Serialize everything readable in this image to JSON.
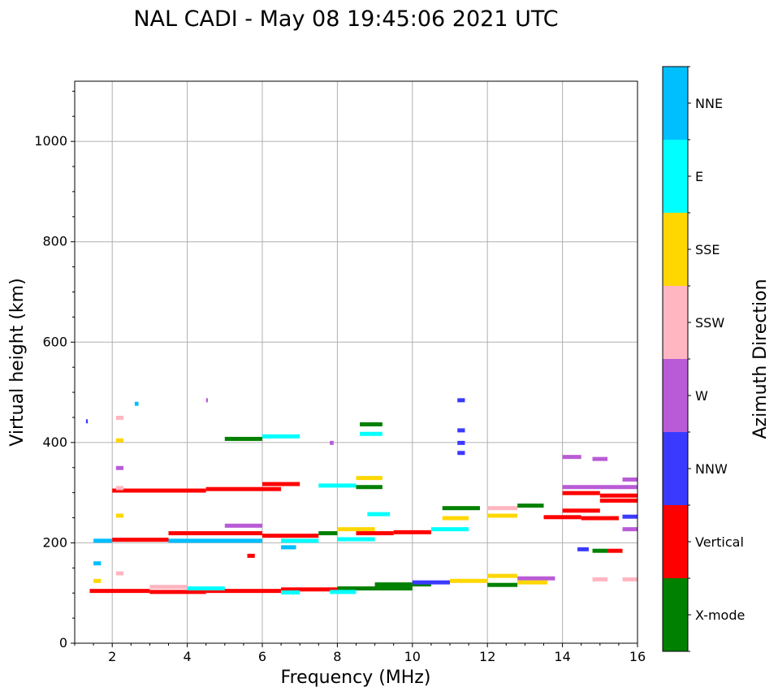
{
  "chart_data": {
    "type": "heatmap",
    "title": "NAL CADI - May 08 19:45:06 2021 UTC",
    "xlabel": "Frequency (MHz)",
    "ylabel": "Virtual height (km)",
    "xlim": [
      1.0,
      16.0
    ],
    "ylim": [
      0,
      1120
    ],
    "xticks": [
      2,
      4,
      6,
      8,
      10,
      12,
      14,
      16
    ],
    "yticks": [
      0,
      200,
      400,
      600,
      800,
      1000
    ],
    "grid": true,
    "colorbar": {
      "label": "Azimuth Direction",
      "categories": [
        {
          "name": "X-mode",
          "color": "#008000"
        },
        {
          "name": "Vertical",
          "color": "#ff0000"
        },
        {
          "name": "NNW",
          "color": "#3a3aff"
        },
        {
          "name": "W",
          "color": "#b95bd6"
        },
        {
          "name": "SSW",
          "color": "#ffb6c1"
        },
        {
          "name": "SSE",
          "color": "#ffd700"
        },
        {
          "name": "E",
          "color": "#00ffff"
        },
        {
          "name": "NNE",
          "color": "#00bfff"
        }
      ]
    },
    "echoes": [
      {
        "f0": 1.4,
        "f1": 3.0,
        "h": 105,
        "c": "Vertical"
      },
      {
        "f0": 3.0,
        "f1": 4.5,
        "h": 103,
        "c": "Vertical"
      },
      {
        "f0": 4.5,
        "f1": 6.5,
        "h": 105,
        "c": "Vertical"
      },
      {
        "f0": 6.5,
        "f1": 8.0,
        "h": 108,
        "c": "Vertical"
      },
      {
        "f0": 8.0,
        "f1": 10.0,
        "h": 110,
        "c": "X-mode"
      },
      {
        "f0": 9.0,
        "f1": 10.5,
        "h": 118,
        "c": "X-mode"
      },
      {
        "f0": 3.0,
        "f1": 4.0,
        "h": 113,
        "c": "SSW"
      },
      {
        "f0": 4.0,
        "f1": 5.0,
        "h": 110,
        "c": "E"
      },
      {
        "f0": 6.5,
        "f1": 7.0,
        "h": 102,
        "c": "E"
      },
      {
        "f0": 7.8,
        "f1": 8.5,
        "h": 103,
        "c": "E"
      },
      {
        "f0": 10.0,
        "f1": 11.0,
        "h": 122,
        "c": "NNW"
      },
      {
        "f0": 11.0,
        "f1": 12.0,
        "h": 125,
        "c": "SSE"
      },
      {
        "f0": 12.0,
        "f1": 12.8,
        "h": 135,
        "c": "SSE"
      },
      {
        "f0": 12.0,
        "f1": 12.8,
        "h": 117,
        "c": "X-mode"
      },
      {
        "f0": 12.8,
        "f1": 13.8,
        "h": 130,
        "c": "W"
      },
      {
        "f0": 12.8,
        "f1": 13.6,
        "h": 122,
        "c": "SSE"
      },
      {
        "f0": 1.5,
        "f1": 2.0,
        "h": 205,
        "c": "NNE"
      },
      {
        "f0": 2.0,
        "f1": 3.5,
        "h": 207,
        "c": "Vertical"
      },
      {
        "f0": 3.5,
        "f1": 6.0,
        "h": 220,
        "c": "Vertical"
      },
      {
        "f0": 3.5,
        "f1": 6.0,
        "h": 205,
        "c": "NNE"
      },
      {
        "f0": 5.0,
        "f1": 6.0,
        "h": 235,
        "c": "W"
      },
      {
        "f0": 6.0,
        "f1": 7.5,
        "h": 215,
        "c": "Vertical"
      },
      {
        "f0": 6.5,
        "f1": 7.5,
        "h": 205,
        "c": "E"
      },
      {
        "f0": 7.5,
        "f1": 8.0,
        "h": 220,
        "c": "X-mode"
      },
      {
        "f0": 8.0,
        "f1": 9.0,
        "h": 208,
        "c": "E"
      },
      {
        "f0": 8.0,
        "f1": 9.0,
        "h": 228,
        "c": "SSE"
      },
      {
        "f0": 8.5,
        "f1": 9.5,
        "h": 220,
        "c": "Vertical"
      },
      {
        "f0": 9.5,
        "f1": 10.5,
        "h": 222,
        "c": "Vertical"
      },
      {
        "f0": 8.8,
        "f1": 9.4,
        "h": 258,
        "c": "E"
      },
      {
        "f0": 10.5,
        "f1": 11.5,
        "h": 228,
        "c": "E"
      },
      {
        "f0": 10.8,
        "f1": 11.5,
        "h": 250,
        "c": "SSE"
      },
      {
        "f0": 10.8,
        "f1": 11.8,
        "h": 270,
        "c": "X-mode"
      },
      {
        "f0": 12.0,
        "f1": 12.8,
        "h": 255,
        "c": "SSE"
      },
      {
        "f0": 12.0,
        "f1": 12.8,
        "h": 270,
        "c": "SSW"
      },
      {
        "f0": 12.8,
        "f1": 13.5,
        "h": 275,
        "c": "X-mode"
      },
      {
        "f0": 13.5,
        "f1": 14.5,
        "h": 252,
        "c": "Vertical"
      },
      {
        "f0": 14.0,
        "f1": 15.0,
        "h": 265,
        "c": "Vertical"
      },
      {
        "f0": 14.5,
        "f1": 15.5,
        "h": 250,
        "c": "Vertical"
      },
      {
        "f0": 15.0,
        "f1": 16.0,
        "h": 285,
        "c": "Vertical"
      },
      {
        "f0": 15.6,
        "f1": 16.0,
        "h": 253,
        "c": "NNW"
      },
      {
        "f0": 14.0,
        "f1": 16.0,
        "h": 312,
        "c": "W"
      },
      {
        "f0": 14.0,
        "f1": 15.0,
        "h": 300,
        "c": "Vertical"
      },
      {
        "f0": 15.0,
        "f1": 16.0,
        "h": 295,
        "c": "Vertical"
      },
      {
        "f0": 2.0,
        "f1": 4.5,
        "h": 305,
        "c": "Vertical"
      },
      {
        "f0": 4.5,
        "f1": 6.5,
        "h": 308,
        "c": "Vertical"
      },
      {
        "f0": 6.0,
        "f1": 7.0,
        "h": 318,
        "c": "Vertical"
      },
      {
        "f0": 7.5,
        "f1": 8.5,
        "h": 315,
        "c": "E"
      },
      {
        "f0": 8.5,
        "f1": 9.2,
        "h": 330,
        "c": "SSE"
      },
      {
        "f0": 8.5,
        "f1": 9.2,
        "h": 312,
        "c": "X-mode"
      },
      {
        "f0": 5.0,
        "f1": 6.0,
        "h": 408,
        "c": "X-mode"
      },
      {
        "f0": 6.0,
        "f1": 7.0,
        "h": 413,
        "c": "E"
      },
      {
        "f0": 8.6,
        "f1": 9.2,
        "h": 418,
        "c": "E"
      },
      {
        "f0": 8.6,
        "f1": 9.2,
        "h": 437,
        "c": "X-mode"
      },
      {
        "f0": 11.2,
        "f1": 11.4,
        "h": 485,
        "c": "NNW"
      },
      {
        "f0": 11.2,
        "f1": 11.4,
        "h": 425,
        "c": "NNW"
      },
      {
        "f0": 11.2,
        "f1": 11.4,
        "h": 400,
        "c": "NNW"
      },
      {
        "f0": 11.2,
        "f1": 11.4,
        "h": 380,
        "c": "NNW"
      },
      {
        "f0": 2.1,
        "f1": 2.3,
        "h": 450,
        "c": "SSW"
      },
      {
        "f0": 2.1,
        "f1": 2.3,
        "h": 405,
        "c": "SSE"
      },
      {
        "f0": 2.1,
        "f1": 2.3,
        "h": 350,
        "c": "W"
      },
      {
        "f0": 2.1,
        "f1": 2.3,
        "h": 310,
        "c": "SSW"
      },
      {
        "f0": 2.1,
        "f1": 2.3,
        "h": 255,
        "c": "SSE"
      },
      {
        "f0": 2.1,
        "f1": 2.3,
        "h": 140,
        "c": "SSW"
      },
      {
        "f0": 1.5,
        "f1": 1.7,
        "h": 160,
        "c": "NNE"
      },
      {
        "f0": 1.5,
        "f1": 1.7,
        "h": 125,
        "c": "SSE"
      },
      {
        "f0": 5.6,
        "f1": 5.8,
        "h": 175,
        "c": "Vertical"
      },
      {
        "f0": 6.5,
        "f1": 6.9,
        "h": 192,
        "c": "NNE"
      },
      {
        "f0": 7.8,
        "f1": 7.9,
        "h": 400,
        "c": "W"
      },
      {
        "f0": 14.4,
        "f1": 14.7,
        "h": 188,
        "c": "NNW"
      },
      {
        "f0": 14.8,
        "f1": 15.2,
        "h": 185,
        "c": "X-mode"
      },
      {
        "f0": 15.2,
        "f1": 15.6,
        "h": 185,
        "c": "Vertical"
      },
      {
        "f0": 14.8,
        "f1": 15.2,
        "h": 128,
        "c": "SSW"
      },
      {
        "f0": 15.6,
        "f1": 16.0,
        "h": 128,
        "c": "SSW"
      },
      {
        "f0": 14.0,
        "f1": 14.5,
        "h": 372,
        "c": "W"
      },
      {
        "f0": 14.8,
        "f1": 15.2,
        "h": 368,
        "c": "W"
      },
      {
        "f0": 15.6,
        "f1": 16.0,
        "h": 327,
        "c": "W"
      },
      {
        "f0": 15.6,
        "f1": 16.0,
        "h": 228,
        "c": "W"
      },
      {
        "f0": 1.3,
        "f1": 1.35,
        "h": 443,
        "c": "NNW"
      },
      {
        "f0": 2.6,
        "f1": 2.7,
        "h": 478,
        "c": "NNE"
      },
      {
        "f0": 4.5,
        "f1": 4.55,
        "h": 485,
        "c": "W"
      }
    ]
  }
}
